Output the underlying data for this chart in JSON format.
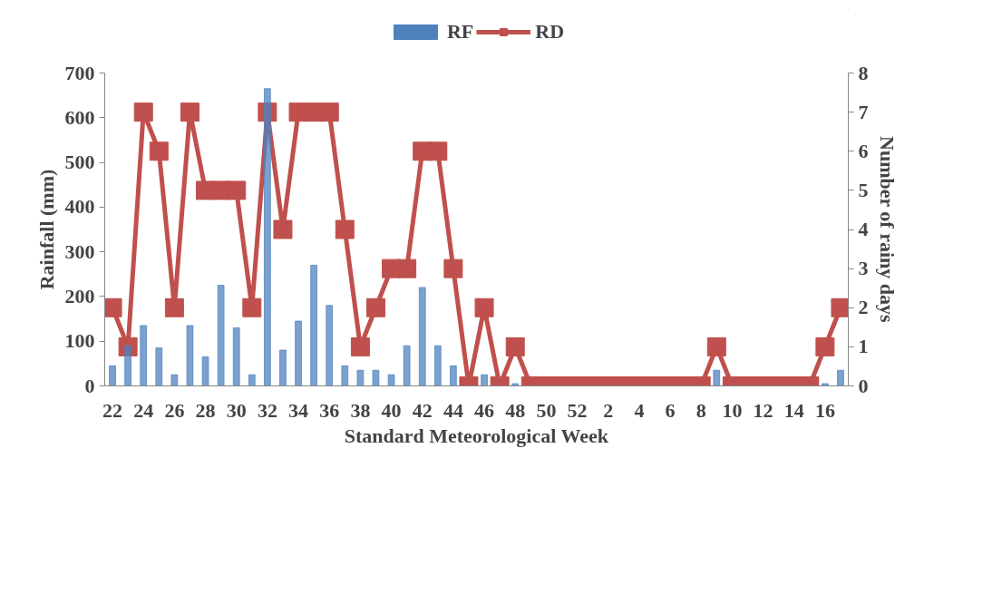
{
  "chart_data": {
    "type": "bar",
    "xlabel": "Standard Meteorological Week",
    "ylabel": "Rainfall (mm)",
    "y2label": "Number of rainy days",
    "categories": [
      "22",
      null,
      "24",
      null,
      "26",
      null,
      "28",
      null,
      "30",
      null,
      "32",
      null,
      "34",
      null,
      "36",
      null,
      "38",
      null,
      "40",
      null,
      "42",
      null,
      "44",
      null,
      "46",
      null,
      "48",
      null,
      "50",
      null,
      "52",
      null,
      "2",
      null,
      "4",
      null,
      "6",
      null,
      "8",
      null,
      "10",
      null,
      "12",
      null,
      "14",
      null,
      "16",
      null
    ],
    "series": [
      {
        "name": "RF",
        "color": "#4f81bd",
        "values": [
          45,
          90,
          135,
          85,
          25,
          135,
          65,
          225,
          130,
          25,
          665,
          80,
          145,
          270,
          180,
          45,
          35,
          35,
          25,
          90,
          220,
          90,
          45,
          null,
          25,
          null,
          5,
          null,
          null,
          null,
          null,
          null,
          null,
          null,
          null,
          null,
          null,
          null,
          null,
          35,
          null,
          null,
          null,
          null,
          null,
          null,
          5,
          35
        ]
      },
      {
        "name": "RD",
        "type": "line",
        "axis": "y2",
        "color": "#c0504d",
        "marker": "square",
        "line_style": "solid",
        "values": [
          2,
          1,
          7,
          6,
          2,
          7,
          5,
          5,
          5,
          2,
          7,
          4,
          7,
          7,
          7,
          4,
          1,
          2,
          3,
          3,
          6,
          6,
          3,
          0,
          2,
          0,
          1,
          0,
          0,
          0,
          0,
          0,
          0,
          0,
          0,
          0,
          0,
          0,
          0,
          1,
          0,
          0,
          0,
          0,
          0,
          0,
          1,
          2
        ]
      }
    ],
    "ylim": [
      0,
      700
    ],
    "yticks": [
      0,
      100,
      200,
      300,
      400,
      500,
      600,
      700
    ],
    "y2lim": [
      0,
      8
    ],
    "y2ticks": [
      0,
      1,
      2,
      3,
      4,
      5,
      6,
      7,
      8
    ],
    "grid": false,
    "legend": "top"
  }
}
